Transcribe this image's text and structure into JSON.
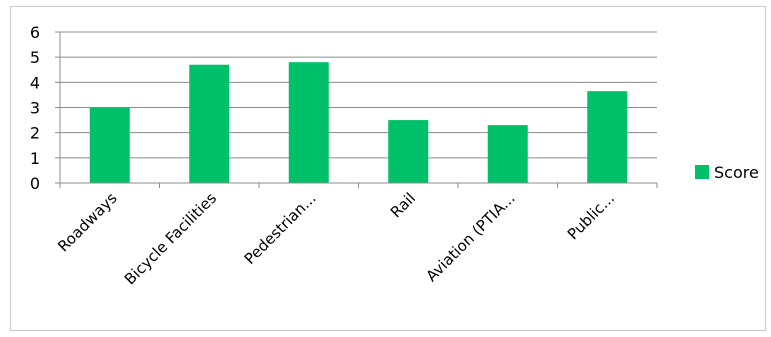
{
  "chart_data": {
    "type": "bar",
    "categories": [
      "Roadways",
      "Bicycle Facilities",
      "Pedestrian...",
      "Rail",
      "Aviation (PTIA...",
      "Public..."
    ],
    "series": [
      {
        "name": "Score",
        "values": [
          3.0,
          4.7,
          4.8,
          2.5,
          2.3,
          3.65
        ],
        "color": "#00c06a"
      }
    ],
    "ylim": [
      0,
      6
    ],
    "yticks": [
      0,
      1,
      2,
      3,
      4,
      5,
      6
    ],
    "grid": true,
    "legend": "right"
  }
}
